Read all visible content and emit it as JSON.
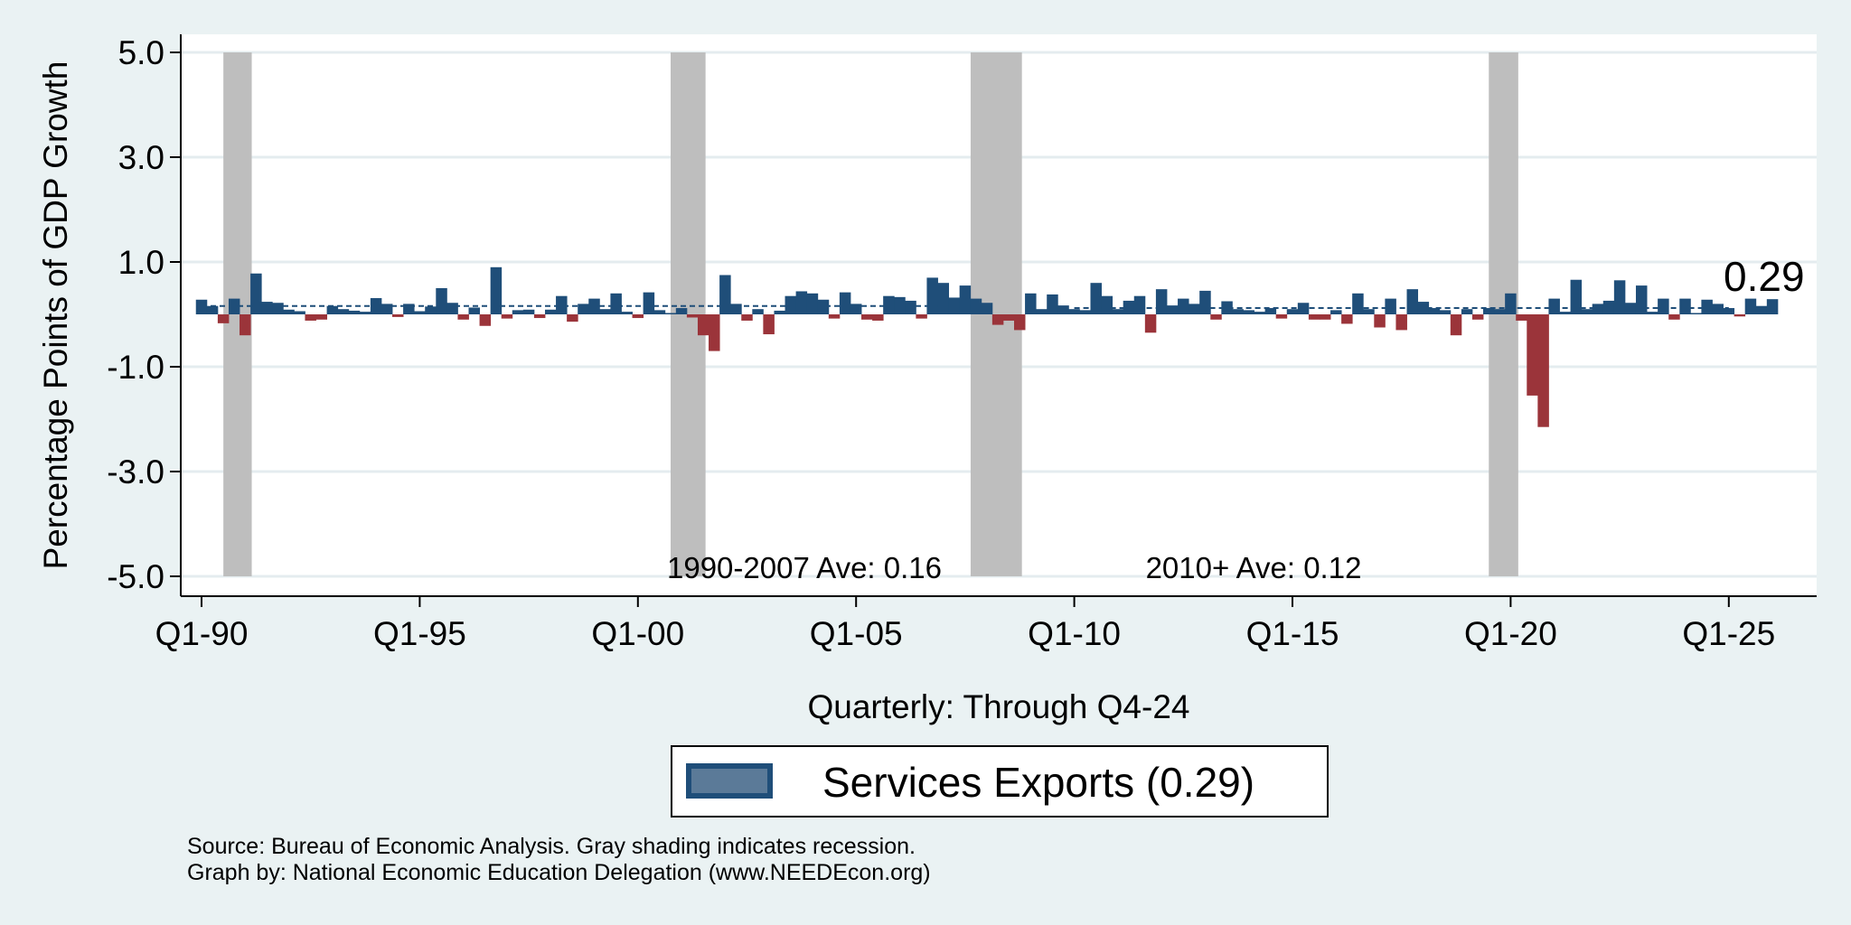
{
  "chart_data": {
    "type": "bar",
    "ylabel": "Percentage Points of GDP Growth",
    "xlabel": "Quarterly: Through Q4-24",
    "ylim": [
      -5,
      5
    ],
    "y_ticks": [
      "5.0",
      "3.0",
      "1.0",
      "-1.0",
      "-3.0",
      "-5.0"
    ],
    "y_tick_values": [
      5,
      3,
      1,
      -1,
      -3,
      -5
    ],
    "x_ticks": [
      "Q1-90",
      "Q1-95",
      "Q1-00",
      "Q1-05",
      "Q1-10",
      "Q1-15",
      "Q1-20",
      "Q1-25"
    ],
    "x_tick_index": [
      0,
      20,
      40,
      60,
      80,
      100,
      120,
      140
    ],
    "start_quarter": "Q1-90",
    "series": [
      {
        "name": "Services Exports (0.29)",
        "positive_color": "#1f4e79",
        "negative_color": "#9b343a",
        "values": [
          0.28,
          0.16,
          -0.17,
          0.3,
          -0.4,
          0.78,
          0.24,
          0.22,
          0.09,
          0.06,
          -0.12,
          -0.1,
          0.16,
          0.1,
          0.07,
          0.05,
          0.31,
          0.2,
          -0.05,
          0.2,
          0.06,
          0.15,
          0.5,
          0.22,
          -0.1,
          0.13,
          -0.22,
          0.9,
          -0.08,
          0.08,
          0.09,
          -0.07,
          0.09,
          0.35,
          -0.14,
          0.2,
          0.3,
          0.1,
          0.4,
          0.05,
          -0.07,
          0.42,
          0.08,
          0.02,
          0.12,
          -0.06,
          -0.4,
          -0.7,
          0.75,
          0.2,
          -0.12,
          0.1,
          -0.38,
          0.07,
          0.35,
          0.44,
          0.4,
          0.28,
          -0.08,
          0.42,
          0.2,
          -0.1,
          -0.12,
          0.35,
          0.33,
          0.26,
          -0.08,
          0.7,
          0.6,
          0.32,
          0.55,
          0.3,
          0.22,
          -0.2,
          -0.12,
          -0.3,
          0.4,
          0.1,
          0.38,
          0.17,
          0.1,
          0.08,
          0.6,
          0.35,
          0.1,
          0.26,
          0.35,
          -0.35,
          0.48,
          0.17,
          0.3,
          0.2,
          0.45,
          -0.1,
          0.25,
          0.1,
          0.08,
          0.05,
          0.12,
          -0.08,
          0.1,
          0.22,
          -0.1,
          -0.1,
          0.08,
          -0.18,
          0.4,
          0.1,
          -0.25,
          0.3,
          -0.3,
          0.48,
          0.24,
          0.12,
          0.08,
          -0.4,
          0.1,
          -0.1,
          0.12,
          0.1,
          0.4,
          -0.12,
          -1.55,
          -2.15,
          0.3,
          0.05,
          0.66,
          0.1,
          0.2,
          0.26,
          0.65,
          0.22,
          0.55,
          0.05,
          0.3,
          -0.1,
          0.3,
          0.0,
          0.28,
          0.2,
          0.12,
          -0.04,
          0.3,
          0.16,
          0.29
        ]
      }
    ],
    "recessions": [
      {
        "start": 2,
        "end": 4.6
      },
      {
        "start": 43,
        "end": 46.2
      },
      {
        "start": 70.5,
        "end": 75.2
      },
      {
        "start": 118,
        "end": 120.7
      }
    ],
    "averages": [
      {
        "label": "1990-2007 Ave: 0.16",
        "value": 0.16,
        "start": 0,
        "end": 72
      },
      {
        "label": "2010+ Ave: 0.12",
        "value": 0.12,
        "start": 80,
        "end": 140
      }
    ],
    "last_value_label": "0.29"
  },
  "legend": {
    "label": "Services Exports (0.29)"
  },
  "footer": {
    "source": "Source: Bureau of Economic Analysis. Gray shading indicates recession.",
    "credit": "Graph by: National Economic Education Delegation (www.NEEDEcon.org)"
  }
}
